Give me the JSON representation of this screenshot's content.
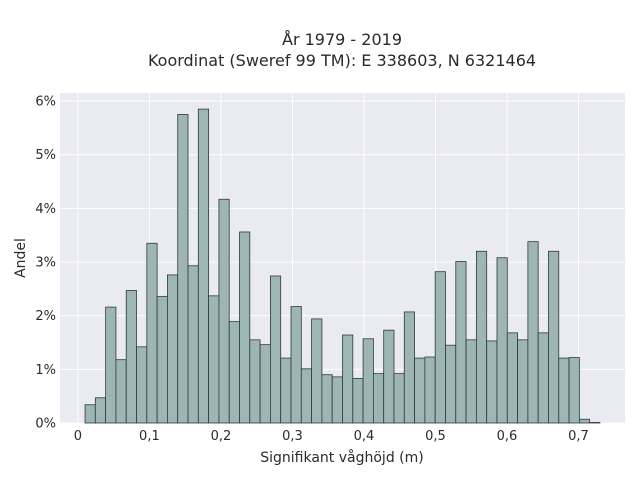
{
  "chart_data": {
    "type": "bar",
    "title_lines": [
      "År 1979 - 2019",
      "Koordinat (Sweref 99 TM): E 338603, N 6321464"
    ],
    "xlabel": "Signifikant våghöjd (m)",
    "ylabel": "Andel",
    "xlim": [
      -0.025,
      0.765
    ],
    "ylim": [
      0,
      0.0615
    ],
    "x_ticks": [
      0,
      0.1,
      0.2,
      0.3,
      0.4,
      0.5,
      0.6,
      0.7
    ],
    "x_tick_labels": [
      "0",
      "0,1",
      "0,2",
      "0,3",
      "0,4",
      "0,5",
      "0,6",
      "0,7"
    ],
    "y_ticks": [
      0,
      0.01,
      0.02,
      0.03,
      0.04,
      0.05,
      0.06
    ],
    "y_tick_labels": [
      "0%",
      "1%",
      "2%",
      "3%",
      "4%",
      "5%",
      "6%"
    ],
    "grid": true,
    "bin_width": 0.0144,
    "bin_start": 0.01,
    "values": [
      0.0034,
      0.0047,
      0.0216,
      0.0118,
      0.0247,
      0.0142,
      0.0335,
      0.0236,
      0.0276,
      0.0575,
      0.0293,
      0.0585,
      0.0237,
      0.0417,
      0.0189,
      0.0356,
      0.0155,
      0.0146,
      0.0274,
      0.0121,
      0.0217,
      0.0101,
      0.0194,
      0.009,
      0.0086,
      0.0164,
      0.0083,
      0.0157,
      0.0092,
      0.0173,
      0.0092,
      0.0207,
      0.0121,
      0.0123,
      0.0282,
      0.0145,
      0.0301,
      0.0155,
      0.032,
      0.0153,
      0.0308,
      0.0168,
      0.0155,
      0.0338,
      0.0168,
      0.032,
      0.0121,
      0.0122,
      0.0007,
      0.0001
    ]
  }
}
